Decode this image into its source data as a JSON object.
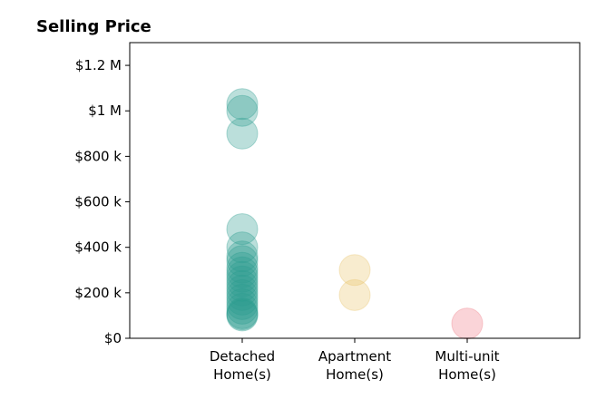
{
  "chart_data": {
    "type": "scatter",
    "title": "Selling Price",
    "xlabel": "",
    "ylabel": "",
    "categories": [
      "Detached Home(s)",
      "Apartment Home(s)",
      "Multi-unit Home(s)"
    ],
    "category_lines": [
      [
        "Detached",
        "Home(s)"
      ],
      [
        "Apartment",
        "Home(s)"
      ],
      [
        "Multi-unit",
        "Home(s)"
      ]
    ],
    "ylim": [
      0,
      1300000
    ],
    "xlim": [
      -1,
      3
    ],
    "y_ticks": [
      0,
      200000,
      400000,
      600000,
      800000,
      1000000,
      1200000
    ],
    "y_tick_labels": [
      "$0",
      "$200 k",
      "$400 k",
      "$600 k",
      "$800 k",
      "$1 M",
      "$1.2 M"
    ],
    "grid": false,
    "legend": "none",
    "series": [
      {
        "category": "Detached Home(s)",
        "color": "#2a9d8f",
        "values": [
          1030000,
          1000000,
          900000,
          480000,
          400000,
          360000,
          340000,
          310000,
          290000,
          270000,
          250000,
          230000,
          210000,
          190000,
          170000,
          150000,
          130000,
          110000,
          105000,
          100000
        ]
      },
      {
        "category": "Apartment Home(s)",
        "color": "#e9c46a",
        "values": [
          300000,
          190000
        ]
      },
      {
        "category": "Multi-unit Home(s)",
        "color": "#ef7a85",
        "values": [
          65000
        ]
      }
    ]
  }
}
